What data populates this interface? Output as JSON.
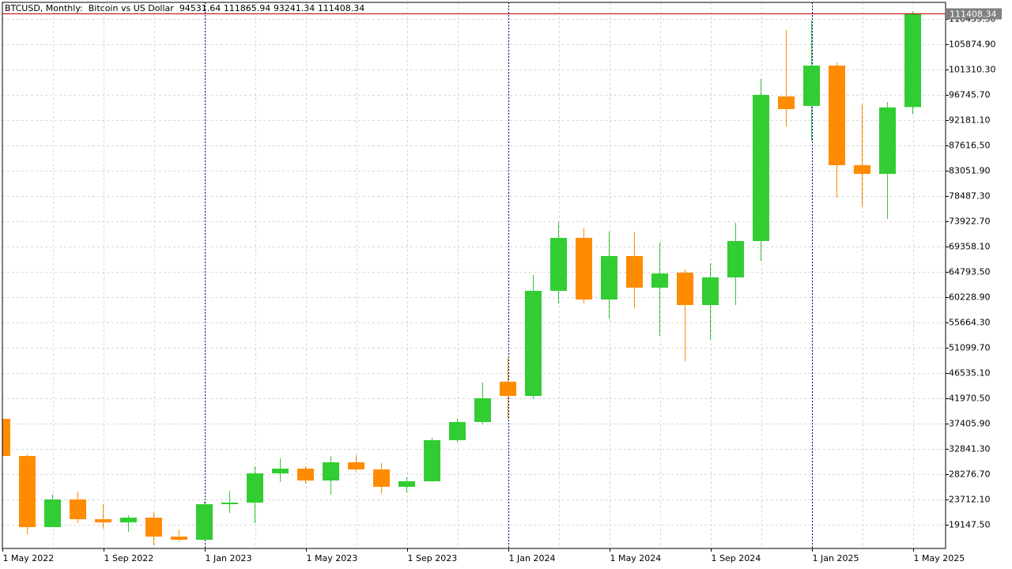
{
  "chart_data": {
    "type": "candlestick",
    "title": "BTCUSD, Monthly:  Bitcoin vs US Dollar",
    "categories": [
      "1 May 2022",
      null,
      null,
      null,
      "1 Sep 2022",
      null,
      null,
      null,
      "1 Jan 2023",
      null,
      null,
      null,
      "1 May 2023",
      null,
      null,
      null,
      "1 Sep 2023",
      null,
      null,
      null,
      "1 Jan 2024",
      null,
      null,
      null,
      "1 May 2024",
      null,
      null,
      null,
      "1 Sep 2024",
      null,
      null,
      null,
      "1 Jan 2025",
      null,
      null,
      null,
      "1 May 2025"
    ],
    "open": [
      38261,
      31557,
      18720,
      23712,
      20146,
      19575,
      20431,
      17008,
      16437,
      22856,
      23141,
      28419,
      29275,
      27135,
      30416,
      29132,
      25994,
      26993,
      34410,
      37691,
      44966,
      42398,
      61368,
      70926,
      59800,
      67646,
      61939,
      64650,
      58802,
      63794,
      70355,
      96455,
      94745,
      102020,
      84048,
      82480,
      94531.64
    ],
    "high": [
      39800,
      31900,
      24568,
      25138,
      22856,
      20859,
      21430,
      18291,
      23284,
      25281,
      29703,
      31129,
      29703,
      31557,
      31700,
      30273,
      27706,
      34838,
      38261,
      44823,
      49244,
      64221,
      73779,
      72637,
      72066,
      72066,
      70070,
      65220,
      66361,
      73636,
      99594,
      108440,
      110151,
      102590,
      95031,
      95458,
      111865.94
    ],
    "low": [
      31300,
      17436,
      18720,
      19433,
      18434,
      17864,
      15439,
      16152,
      16437,
      21287,
      19433,
      26850,
      26565,
      24568,
      28704,
      24711,
      24996,
      26850,
      33982,
      37262,
      38261,
      41827,
      59086,
      59086,
      56376,
      58230,
      53238,
      48675,
      52525,
      58802,
      66789,
      91038,
      88471,
      78200,
      76488,
      74349,
      93241.34
    ],
    "close": [
      31557,
      18720,
      23712,
      20146,
      19575,
      20431,
      17008,
      16437,
      22856,
      23141,
      28419,
      29275,
      27135,
      30416,
      29132,
      25994,
      26993,
      34410,
      37691,
      41970,
      42398,
      61368,
      70926,
      59800,
      67646,
      61939,
      64507,
      58802,
      63794,
      70355,
      96741,
      94173,
      102020,
      84048,
      82480,
      94459,
      111408.34
    ],
    "up_color": "#32cd32",
    "down_color": "#ff8c00",
    "price_line_color": "#c00000",
    "grid": true,
    "ylim": [
      14868,
      113434
    ],
    "yticks": [
      {
        "value": 19147.5,
        "label": "19147.50"
      },
      {
        "value": 23712.1,
        "label": "23712.10"
      },
      {
        "value": 28276.7,
        "label": "28276.70"
      },
      {
        "value": 32841.3,
        "label": "32841.30"
      },
      {
        "value": 37405.9,
        "label": "37405.90"
      },
      {
        "value": 41970.5,
        "label": "41970.50"
      },
      {
        "value": 46535.1,
        "label": "46535.10"
      },
      {
        "value": 51099.7,
        "label": "51099.70"
      },
      {
        "value": 55664.3,
        "label": "55664.30"
      },
      {
        "value": 60228.9,
        "label": "60228.90"
      },
      {
        "value": 64793.5,
        "label": "64793.50"
      },
      {
        "value": 69358.1,
        "label": "69358.10"
      },
      {
        "value": 73922.7,
        "label": "73922.70"
      },
      {
        "value": 78487.3,
        "label": "78487.30"
      },
      {
        "value": 83051.9,
        "label": "83051.90"
      },
      {
        "value": 87616.5,
        "label": "87616.50"
      },
      {
        "value": 92181.1,
        "label": "92181.10"
      },
      {
        "value": 96745.7,
        "label": "96745.70"
      },
      {
        "value": 101310.3,
        "label": "101310.30"
      },
      {
        "value": 105874.9,
        "label": "105874.90"
      },
      {
        "value": 110439.3,
        "label": "110439.30"
      }
    ]
  }
}
